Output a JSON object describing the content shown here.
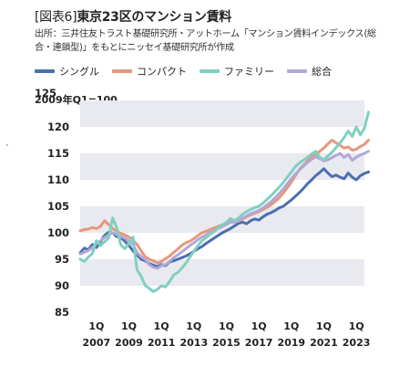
{
  "header": {
    "title_bracket": "[図表6]",
    "title": "東京23区のマンション賃料",
    "source": "出所：三井住友トラスト基礎研究所・アットホーム「マンション賃料インデックス(総合・連鎖型)」をもとにニッセイ基礎研究所が作成",
    "baseline_label": "2009年Q1=100"
  },
  "colors": {
    "single": "#4a6fb0",
    "compact": "#e8977a",
    "family": "#7fd0c0",
    "total": "#b3a6d8",
    "band": "#e9eaf0"
  },
  "chart_data": {
    "type": "line",
    "title": "東京23区のマンション賃料",
    "ylim": [
      85,
      125
    ],
    "yticks": [
      85,
      90,
      95,
      100,
      105,
      110,
      115,
      120,
      125
    ],
    "x_tick_top": [
      "1Q",
      "1Q",
      "1Q",
      "1Q",
      "1Q",
      "1Q",
      "1Q",
      "1Q",
      "1Q"
    ],
    "x_tick_bottom": [
      "2007",
      "2009",
      "2011",
      "2013",
      "2015",
      "2017",
      "2019",
      "2021",
      "2023"
    ],
    "x_tick_years": [
      2007,
      2009,
      2011,
      2013,
      2015,
      2017,
      2019,
      2021,
      2023
    ],
    "x_start": 2006.0,
    "x_end": 2023.5,
    "x_step": 0.25,
    "grid": "horizontal bands",
    "legend_position": "top",
    "series": [
      {
        "name": "シングル",
        "key": "single",
        "values": [
          96.2,
          97.1,
          96.8,
          97.8,
          97.2,
          98.3,
          99.5,
          100.1,
          100.0,
          99.3,
          99.1,
          98.4,
          97.6,
          96.6,
          95.8,
          95.0,
          94.7,
          94.2,
          93.9,
          93.6,
          94.0,
          93.8,
          94.5,
          94.7,
          95.0,
          95.3,
          95.6,
          96.0,
          96.5,
          97.0,
          97.4,
          98.0,
          98.5,
          99.0,
          99.5,
          100.0,
          100.4,
          100.8,
          101.3,
          101.8,
          102.0,
          101.7,
          102.3,
          102.6,
          102.4,
          103.0,
          103.5,
          103.8,
          104.2,
          104.7,
          105.0,
          105.6,
          106.2,
          106.9,
          107.6,
          108.4,
          109.3,
          110.0,
          110.8,
          111.4,
          112.1,
          111.3,
          110.6,
          110.9,
          110.5,
          110.2,
          111.3,
          110.5,
          110.0,
          110.8,
          111.2,
          111.5
        ]
      },
      {
        "name": "コンパクト",
        "key": "compact",
        "values": [
          100.4,
          100.6,
          100.7,
          101.0,
          100.8,
          101.2,
          102.3,
          101.6,
          100.8,
          100.3,
          99.9,
          99.6,
          99.2,
          98.6,
          97.8,
          96.6,
          95.5,
          95.0,
          94.7,
          94.3,
          94.6,
          95.1,
          95.6,
          96.3,
          96.9,
          97.6,
          98.1,
          98.4,
          98.9,
          99.5,
          100.0,
          100.3,
          100.6,
          100.9,
          101.2,
          101.5,
          101.8,
          102.1,
          102.0,
          102.2,
          102.6,
          103.0,
          103.4,
          103.7,
          104.0,
          104.4,
          104.8,
          105.3,
          105.9,
          106.6,
          107.5,
          108.5,
          109.6,
          110.8,
          112.0,
          112.8,
          113.6,
          114.3,
          114.8,
          115.4,
          116.0,
          116.8,
          117.5,
          117.0,
          116.5,
          116.0,
          116.2,
          115.6,
          115.8,
          116.3,
          116.7,
          117.5
        ]
      },
      {
        "name": "ファミリー",
        "key": "family",
        "values": [
          95.0,
          94.6,
          95.4,
          96.1,
          98.5,
          97.6,
          98.3,
          99.0,
          102.8,
          101.0,
          97.7,
          97.0,
          98.0,
          99.2,
          93.0,
          91.8,
          90.1,
          89.5,
          88.9,
          89.3,
          90.0,
          89.8,
          90.8,
          92.0,
          92.5,
          93.3,
          94.2,
          95.4,
          96.5,
          97.6,
          98.5,
          99.1,
          99.7,
          100.2,
          100.9,
          101.5,
          102.0,
          102.7,
          102.3,
          102.8,
          103.5,
          104.0,
          104.4,
          104.8,
          105.0,
          105.6,
          106.3,
          107.0,
          107.8,
          108.6,
          109.5,
          110.5,
          111.5,
          112.5,
          113.2,
          113.7,
          114.3,
          114.9,
          115.4,
          114.2,
          113.8,
          114.5,
          115.2,
          116.1,
          117.0,
          118.0,
          119.2,
          118.2,
          120.0,
          118.5,
          119.8,
          122.8
        ]
      },
      {
        "name": "総合",
        "key": "total",
        "values": [
          96.0,
          96.3,
          96.6,
          97.2,
          98.0,
          98.5,
          99.1,
          99.6,
          100.0,
          99.7,
          99.3,
          99.0,
          98.5,
          97.8,
          96.3,
          95.5,
          95.0,
          94.0,
          93.5,
          93.3,
          93.8,
          94.0,
          94.6,
          95.3,
          95.8,
          96.4,
          97.0,
          97.6,
          98.1,
          98.7,
          99.2,
          99.6,
          100.1,
          100.4,
          100.8,
          101.2,
          101.6,
          102.0,
          102.0,
          102.3,
          102.8,
          103.2,
          103.6,
          103.9,
          104.2,
          104.7,
          105.3,
          105.9,
          106.6,
          107.4,
          108.3,
          109.3,
          110.2,
          111.1,
          111.9,
          112.6,
          113.3,
          113.9,
          114.4,
          114.0,
          113.6,
          113.8,
          114.2,
          114.6,
          115.0,
          114.2,
          114.8,
          113.7,
          114.3,
          114.7,
          115.0,
          115.4
        ]
      }
    ]
  }
}
